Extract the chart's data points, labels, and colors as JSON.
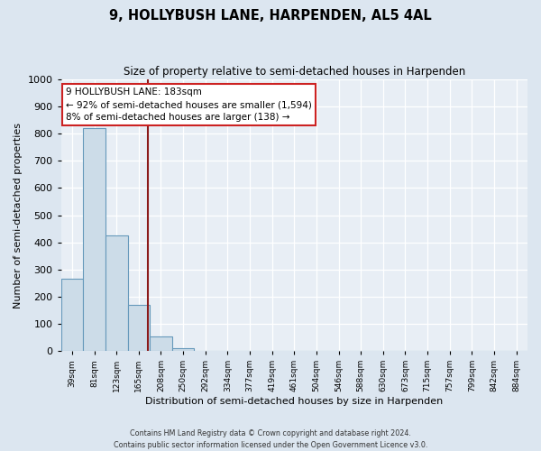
{
  "title": "9, HOLLYBUSH LANE, HARPENDEN, AL5 4AL",
  "subtitle": "Size of property relative to semi-detached houses in Harpenden",
  "xlabel": "Distribution of semi-detached houses by size in Harpenden",
  "ylabel": "Number of semi-detached properties",
  "bin_labels": [
    "39sqm",
    "81sqm",
    "123sqm",
    "165sqm",
    "208sqm",
    "250sqm",
    "292sqm",
    "334sqm",
    "377sqm",
    "419sqm",
    "461sqm",
    "504sqm",
    "546sqm",
    "588sqm",
    "630sqm",
    "673sqm",
    "715sqm",
    "757sqm",
    "799sqm",
    "842sqm",
    "884sqm"
  ],
  "bar_values": [
    265,
    822,
    425,
    170,
    52,
    11,
    0,
    0,
    0,
    0,
    0,
    0,
    0,
    0,
    0,
    0,
    0,
    0,
    0,
    0,
    0
  ],
  "bar_color": "#ccdce8",
  "bar_edge_color": "#6699bb",
  "property_line_color": "#8b1a1a",
  "annotation_title": "9 HOLLYBUSH LANE: 183sqm",
  "annotation_line1": "← 92% of semi-detached houses are smaller (1,594)",
  "annotation_line2": "8% of semi-detached houses are larger (138) →",
  "annotation_box_color": "#ffffff",
  "annotation_box_edge": "#cc2222",
  "ylim": [
    0,
    1000
  ],
  "yticks": [
    0,
    100,
    200,
    300,
    400,
    500,
    600,
    700,
    800,
    900,
    1000
  ],
  "footer_line1": "Contains HM Land Registry data © Crown copyright and database right 2024.",
  "footer_line2": "Contains public sector information licensed under the Open Government Licence v3.0.",
  "fig_bg_color": "#dce6f0",
  "plot_bg_color": "#e8eef5"
}
